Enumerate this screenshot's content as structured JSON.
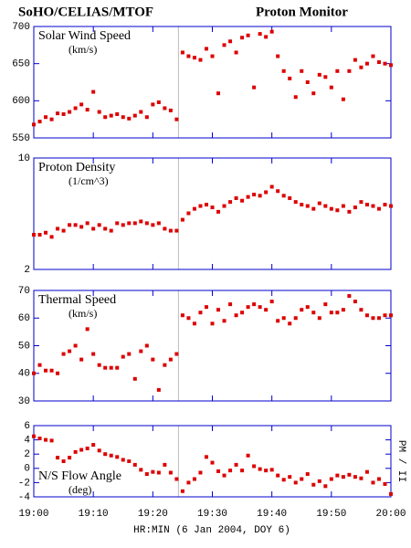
{
  "title": "SoHO/CELIAS/MTOF",
  "title_right": "Proton Monitor",
  "x_label": "HR:MIN (6 Jan 2004, DOY 6)",
  "side_label": "PM / II",
  "chart_data": [
    {
      "type": "scatter",
      "title": "Solar Wind Speed",
      "subtitle": "(km/s)",
      "label_corner": "top-left",
      "color": "#dd0000",
      "vline": 24.3,
      "x": [
        0,
        1,
        2,
        3,
        4,
        5,
        6,
        7,
        8,
        9,
        10,
        11,
        12,
        13,
        14,
        15,
        16,
        17,
        18,
        19,
        20,
        21,
        22,
        23,
        24,
        25,
        26,
        27,
        28,
        29,
        30,
        31,
        32,
        33,
        34,
        35,
        36,
        37,
        38,
        39,
        40,
        41,
        42,
        43,
        44,
        45,
        46,
        47,
        48,
        49,
        50,
        51,
        52,
        53,
        54,
        55,
        56,
        57,
        58,
        59,
        60
      ],
      "values": [
        568,
        572,
        578,
        575,
        583,
        582,
        585,
        590,
        595,
        588,
        612,
        585,
        578,
        580,
        582,
        578,
        576,
        580,
        585,
        578,
        595,
        598,
        590,
        587,
        575,
        665,
        660,
        658,
        655,
        670,
        660,
        610,
        675,
        680,
        665,
        685,
        688,
        618,
        690,
        686,
        693,
        660,
        640,
        630,
        605,
        640,
        625,
        610,
        635,
        632,
        618,
        640,
        602,
        640,
        655,
        645,
        650,
        660,
        652,
        650,
        648
      ],
      "xlim": [
        0,
        60
      ],
      "xticks": [
        0,
        10,
        20,
        30,
        40,
        50,
        60
      ],
      "ylim": [
        550,
        700
      ],
      "yticks": [
        550,
        600,
        650,
        700
      ],
      "log_scale": false
    },
    {
      "type": "scatter",
      "title": "Proton Density",
      "subtitle": "(1/cm^3)",
      "label_corner": "top-left",
      "color": "#dd0000",
      "vline": 24.3,
      "x": [
        0,
        1,
        2,
        3,
        4,
        5,
        6,
        7,
        8,
        9,
        10,
        11,
        12,
        13,
        14,
        15,
        16,
        17,
        18,
        19,
        20,
        21,
        22,
        23,
        24,
        25,
        26,
        27,
        28,
        29,
        30,
        31,
        32,
        33,
        34,
        35,
        36,
        37,
        38,
        39,
        40,
        41,
        42,
        43,
        44,
        45,
        46,
        47,
        48,
        49,
        50,
        51,
        52,
        53,
        54,
        55,
        56,
        57,
        58,
        59,
        60
      ],
      "values": [
        3.3,
        3.3,
        3.4,
        3.2,
        3.6,
        3.5,
        3.8,
        3.8,
        3.7,
        3.9,
        3.6,
        3.8,
        3.6,
        3.5,
        3.9,
        3.8,
        3.9,
        3.9,
        4.0,
        3.9,
        3.8,
        3.9,
        3.6,
        3.5,
        3.5,
        4.1,
        4.5,
        4.8,
        5.0,
        5.1,
        4.9,
        4.6,
        5.0,
        5.3,
        5.6,
        5.4,
        5.7,
        5.9,
        5.8,
        6.1,
        6.6,
        6.2,
        5.8,
        5.6,
        5.3,
        5.1,
        5.0,
        4.8,
        5.2,
        5.0,
        4.8,
        4.7,
        5.0,
        4.6,
        4.9,
        5.3,
        5.1,
        5.0,
        4.8,
        5.1,
        5.0
      ],
      "xlim": [
        0,
        60
      ],
      "xticks": [
        0,
        10,
        20,
        30,
        40,
        50,
        60
      ],
      "ylim": [
        2,
        10
      ],
      "yticks": [
        2,
        10
      ],
      "log_scale": true
    },
    {
      "type": "scatter",
      "title": "Thermal Speed",
      "subtitle": "(km/s)",
      "label_corner": "top-left",
      "color": "#dd0000",
      "vline": 24.3,
      "x": [
        0,
        1,
        2,
        3,
        4,
        5,
        6,
        7,
        8,
        9,
        10,
        11,
        12,
        13,
        14,
        15,
        16,
        17,
        18,
        19,
        20,
        21,
        22,
        23,
        24,
        25,
        26,
        27,
        28,
        29,
        30,
        31,
        32,
        33,
        34,
        35,
        36,
        37,
        38,
        39,
        40,
        41,
        42,
        43,
        44,
        45,
        46,
        47,
        48,
        49,
        50,
        51,
        52,
        53,
        54,
        55,
        56,
        57,
        58,
        59,
        60
      ],
      "values": [
        40,
        43,
        41,
        41,
        40,
        47,
        48,
        50,
        45,
        56,
        47,
        43,
        42,
        42,
        42,
        46,
        47,
        38,
        48,
        50,
        45,
        34,
        43,
        45,
        47,
        61,
        60,
        58,
        62,
        64,
        58,
        63,
        59,
        65,
        61,
        62,
        64,
        65,
        64,
        63,
        66,
        59,
        60,
        58,
        60,
        63,
        64,
        62,
        60,
        65,
        62,
        62,
        63,
        68,
        66,
        63,
        61,
        60,
        60,
        61,
        61
      ],
      "xlim": [
        0,
        60
      ],
      "xticks": [
        0,
        10,
        20,
        30,
        40,
        50,
        60
      ],
      "ylim": [
        30,
        70
      ],
      "yticks": [
        30,
        40,
        50,
        60,
        70
      ],
      "log_scale": false
    },
    {
      "type": "scatter",
      "title": "N/S Flow Angle",
      "subtitle": "(deg)",
      "label_corner": "bottom-left",
      "color": "#dd0000",
      "vline": 24.3,
      "x": [
        0,
        1,
        2,
        3,
        4,
        5,
        6,
        7,
        8,
        9,
        10,
        11,
        12,
        13,
        14,
        15,
        16,
        17,
        18,
        19,
        20,
        21,
        22,
        23,
        24,
        25,
        26,
        27,
        28,
        29,
        30,
        31,
        32,
        33,
        34,
        35,
        36,
        37,
        38,
        39,
        40,
        41,
        42,
        43,
        44,
        45,
        46,
        47,
        48,
        49,
        50,
        51,
        52,
        53,
        54,
        55,
        56,
        57,
        58,
        59,
        60
      ],
      "values": [
        4.5,
        4.2,
        4.0,
        3.9,
        1.5,
        1.0,
        1.5,
        2.3,
        2.6,
        2.8,
        3.3,
        2.5,
        2.0,
        1.8,
        1.6,
        1.2,
        1.0,
        0.5,
        -0.2,
        -0.8,
        -0.5,
        -0.6,
        0.5,
        -0.6,
        -1.5,
        -3.2,
        -2.0,
        -1.5,
        -0.6,
        1.6,
        0.8,
        -0.4,
        -1.0,
        -0.3,
        0.5,
        -0.3,
        1.8,
        0.3,
        -0.1,
        -0.3,
        -0.2,
        -1.0,
        -1.6,
        -1.2,
        -2.0,
        -1.5,
        -0.8,
        -2.3,
        -1.8,
        -2.5,
        -1.5,
        -1.0,
        -1.2,
        -0.9,
        -1.2,
        -1.4,
        -0.5,
        -2.0,
        -1.5,
        -2.2,
        -3.6
      ],
      "xlim": [
        0,
        60
      ],
      "xticks": [
        {
          "value": 0,
          "label": "19:00"
        },
        {
          "value": 10,
          "label": "19:10"
        },
        {
          "value": 20,
          "label": "19:20"
        },
        {
          "value": 30,
          "label": "19:30"
        },
        {
          "value": 40,
          "label": "19:40"
        },
        {
          "value": 50,
          "label": "19:50"
        },
        {
          "value": 60,
          "label": "20:00"
        }
      ],
      "ylim": [
        -4,
        6
      ],
      "yticks": [
        -4,
        -2,
        0,
        2,
        4,
        6
      ],
      "log_scale": false
    }
  ]
}
